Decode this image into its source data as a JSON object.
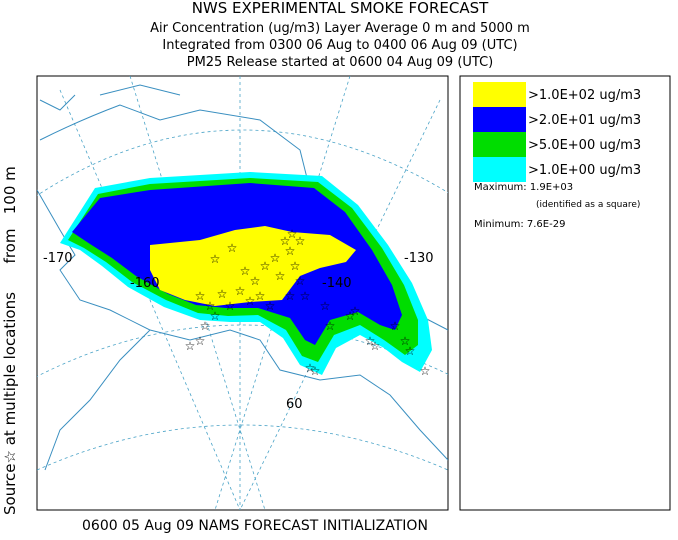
{
  "header": {
    "title": "NWS EXPERIMENTAL SMOKE FORECAST",
    "lines": [
      "Air Concentration (ug/m3) Layer Average    0 m and  5000 m",
      "Integrated from 0300 06 Aug to 0400 06 Aug 09 (UTC)",
      "PM25 Release started at 0600 04 Aug 09 (UTC)"
    ]
  },
  "side_label": "Source☆ at multiple locations      from   100 m",
  "legend": {
    "entries": [
      {
        "label": ">1.0E+02 ug/m3",
        "color": "#ffff00"
      },
      {
        "label": ">2.0E+01 ug/m3",
        "color": "#0000ff"
      },
      {
        "label": ">5.0E+00 ug/m3",
        "color": "#00dd00"
      },
      {
        "label": ">1.0E+00 ug/m3",
        "color": "#00ffff"
      }
    ],
    "maximum": "Maximum: 1.9E+03",
    "maximum_note": "(identified as a square)",
    "minimum": "Minimum: 7.6E-29"
  },
  "map": {
    "labels": [
      "-170",
      "-160",
      "-140",
      "-130",
      "60"
    ]
  },
  "footer": "0600 05 Aug 09 NAMS FORECAST INITIALIZATION"
}
